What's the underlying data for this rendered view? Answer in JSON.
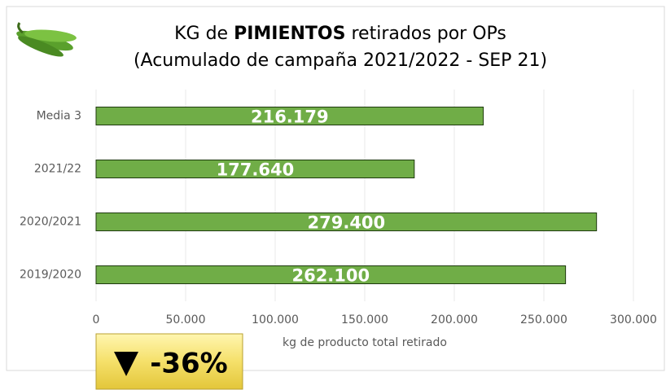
{
  "chart_data": {
    "type": "bar",
    "orientation": "horizontal",
    "title": [
      "KG de",
      "PIMIENTOS",
      "retirados por OPs"
    ],
    "subtitle": "(Acumulado de campaña 2021/2022 - SEP 21)",
    "categories": [
      "Media 3",
      "2021/22",
      "2020/2021",
      "2019/2020"
    ],
    "values": [
      216179,
      177640,
      279400,
      262100
    ],
    "value_labels": [
      "216.179",
      "177.640",
      "279.400",
      "262.100"
    ],
    "color": "#70ad47",
    "xlim": [
      0,
      300000
    ],
    "xticks": [
      0,
      {
        "value": 50000,
        "label": "50.000"
      },
      {
        "value": 100000,
        "label": "100.000"
      },
      {
        "value": 150000,
        "label": "150.000"
      },
      {
        "value": 200000,
        "label": "200.000"
      },
      {
        "value": 250000,
        "label": "250.000"
      },
      {
        "value": 300000,
        "label": "300.000"
      }
    ],
    "xlabel": "kg de producto total retirado",
    "annotation": "-36%"
  }
}
